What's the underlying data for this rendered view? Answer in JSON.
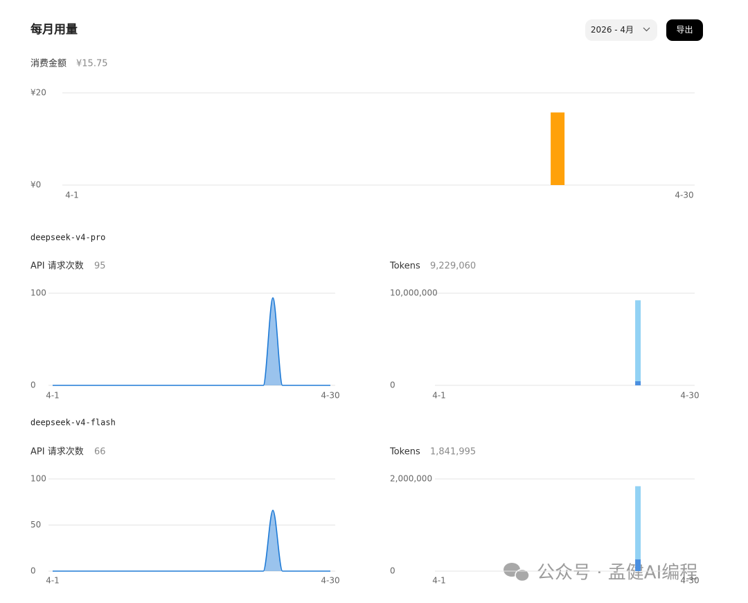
{
  "header": {
    "title": "每月用量",
    "month": "2026 - 4月",
    "export": "导出"
  },
  "models": [
    "deepseek-v4-pro",
    "deepseek-v4-flash"
  ],
  "watermark": "公众号 · 孟健AI编程",
  "chart_data": [
    {
      "type": "bar",
      "title": "消费金额",
      "summary": "¥15.75",
      "color": "#ffa10a",
      "categories": [
        "4-1",
        null,
        null,
        null,
        null,
        null,
        null,
        null,
        null,
        null,
        null,
        null,
        null,
        null,
        null,
        null,
        null,
        null,
        null,
        null,
        null,
        null,
        null,
        null,
        null,
        null,
        null,
        null,
        null,
        "4-30"
      ],
      "values": [
        0,
        0,
        0,
        0,
        0,
        0,
        0,
        0,
        0,
        0,
        0,
        0,
        0,
        0,
        0,
        0,
        0,
        0,
        0,
        0,
        0,
        0,
        0,
        15.75,
        0,
        0,
        0,
        0,
        0,
        0
      ],
      "ylim": [
        0,
        20
      ],
      "yticks": [
        {
          "value": 0,
          "label": "¥0"
        },
        {
          "value": 20,
          "label": "¥20"
        }
      ],
      "grid": true
    },
    {
      "type": "line",
      "title": "API 请求次数",
      "summary": "95",
      "color": "#1e7ad6",
      "categories": [
        "4-1",
        null,
        null,
        null,
        null,
        null,
        null,
        null,
        null,
        null,
        null,
        null,
        null,
        null,
        null,
        null,
        null,
        null,
        null,
        null,
        null,
        null,
        null,
        null,
        null,
        null,
        null,
        null,
        null,
        "4-30"
      ],
      "values": [
        0,
        0,
        0,
        0,
        0,
        0,
        0,
        0,
        0,
        0,
        0,
        0,
        0,
        0,
        0,
        0,
        0,
        0,
        0,
        0,
        0,
        0,
        0,
        95,
        0,
        0,
        0,
        0,
        0,
        0
      ],
      "ylim": [
        0,
        100
      ],
      "yticks": [
        0,
        100
      ],
      "grid": true
    },
    {
      "type": "bar",
      "title": "Tokens",
      "summary": "9,229,060",
      "stacked": true,
      "categories": [
        "4-1",
        null,
        null,
        null,
        null,
        null,
        null,
        null,
        null,
        null,
        null,
        null,
        null,
        null,
        null,
        null,
        null,
        null,
        null,
        null,
        null,
        null,
        null,
        null,
        null,
        null,
        null,
        null,
        null,
        "4-30"
      ],
      "series": [
        {
          "color": "#4a8fe0",
          "values": [
            0,
            0,
            0,
            0,
            0,
            0,
            0,
            0,
            0,
            0,
            0,
            0,
            0,
            0,
            0,
            0,
            0,
            0,
            0,
            0,
            0,
            0,
            0,
            450000,
            0,
            0,
            0,
            0,
            0,
            0
          ]
        },
        {
          "color": "#92d2f4",
          "values": [
            0,
            0,
            0,
            0,
            0,
            0,
            0,
            0,
            0,
            0,
            0,
            0,
            0,
            0,
            0,
            0,
            0,
            0,
            0,
            0,
            0,
            0,
            0,
            8779060,
            0,
            0,
            0,
            0,
            0,
            0
          ]
        }
      ],
      "ylim": [
        0,
        10000000
      ],
      "yticks": [
        0,
        {
          "value": 10000000,
          "label": "10,000,000"
        }
      ],
      "grid": true
    },
    {
      "type": "line",
      "title": "API 请求次数",
      "summary": "66",
      "color": "#1e7ad6",
      "categories": [
        "4-1",
        null,
        null,
        null,
        null,
        null,
        null,
        null,
        null,
        null,
        null,
        null,
        null,
        null,
        null,
        null,
        null,
        null,
        null,
        null,
        null,
        null,
        null,
        null,
        null,
        null,
        null,
        null,
        null,
        "4-30"
      ],
      "values": [
        0,
        0,
        0,
        0,
        0,
        0,
        0,
        0,
        0,
        0,
        0,
        0,
        0,
        0,
        0,
        0,
        0,
        0,
        0,
        0,
        0,
        0,
        0,
        66,
        0,
        0,
        0,
        0,
        0,
        0
      ],
      "ylim": [
        0,
        100
      ],
      "yticks": [
        0,
        50,
        100
      ],
      "grid": true
    },
    {
      "type": "bar",
      "title": "Tokens",
      "summary": "1,841,995",
      "stacked": true,
      "categories": [
        "4-1",
        null,
        null,
        null,
        null,
        null,
        null,
        null,
        null,
        null,
        null,
        null,
        null,
        null,
        null,
        null,
        null,
        null,
        null,
        null,
        null,
        null,
        null,
        null,
        null,
        null,
        null,
        null,
        null,
        "4-30"
      ],
      "series": [
        {
          "color": "#4a8fe0",
          "values": [
            0,
            0,
            0,
            0,
            0,
            0,
            0,
            0,
            0,
            0,
            0,
            0,
            0,
            0,
            0,
            0,
            0,
            0,
            0,
            0,
            0,
            0,
            0,
            255000,
            0,
            0,
            0,
            0,
            0,
            0
          ]
        },
        {
          "color": "#92d2f4",
          "values": [
            0,
            0,
            0,
            0,
            0,
            0,
            0,
            0,
            0,
            0,
            0,
            0,
            0,
            0,
            0,
            0,
            0,
            0,
            0,
            0,
            0,
            0,
            0,
            1586995,
            0,
            0,
            0,
            0,
            0,
            0
          ]
        }
      ],
      "ylim": [
        0,
        2000000
      ],
      "yticks": [
        0,
        {
          "value": 2000000,
          "label": "2,000,000"
        }
      ],
      "grid": true
    }
  ]
}
